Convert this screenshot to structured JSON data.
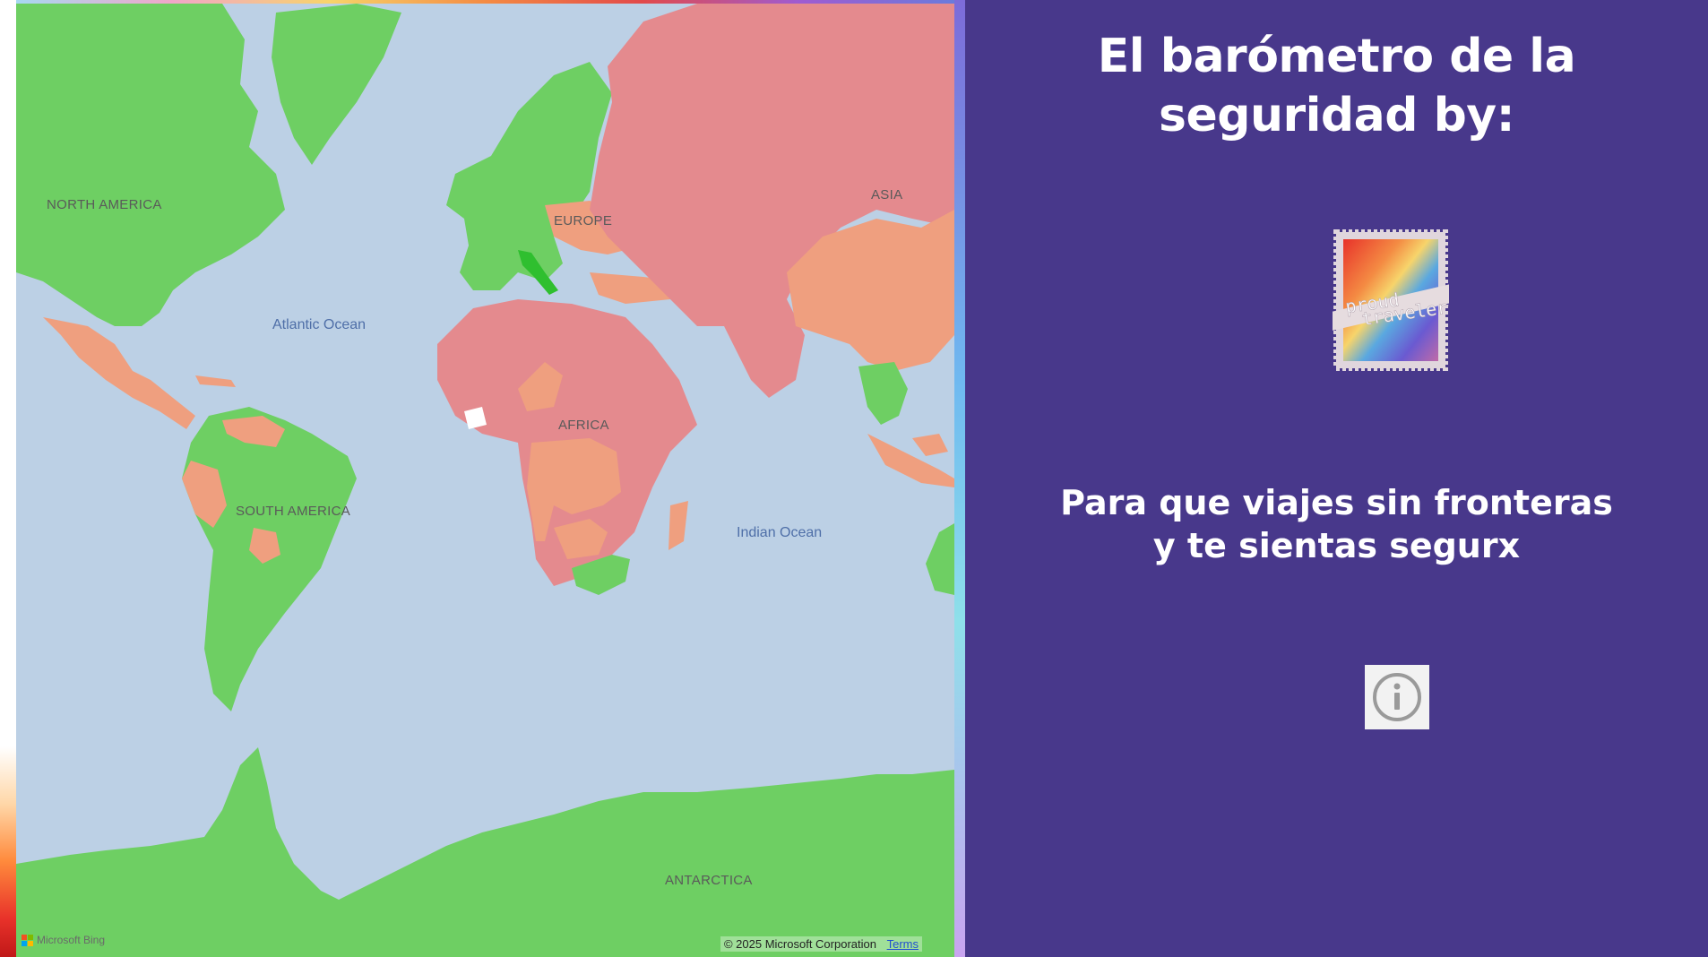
{
  "map": {
    "continent_labels": {
      "north_america": "NORTH AMERICA",
      "south_america": "SOUTH AMERICA",
      "europe": "EUROPE",
      "asia": "ASIA",
      "africa": "AFRICA",
      "antarctica": "ANTARCTICA"
    },
    "ocean_labels": {
      "atlantic": "Atlantic Ocean",
      "indian": "Indian Ocean"
    },
    "attribution": {
      "provider": "Microsoft Bing",
      "copyright": "© 2025 Microsoft Corporation",
      "terms_link": "Terms"
    },
    "colors": {
      "ocean": "#bcd0e5",
      "safe": "#6ecf63",
      "caution": "#ef9f7f",
      "danger": "#e48a8e",
      "highlight": "#2fbf2f"
    }
  },
  "panel": {
    "background": "#48388b",
    "title_line1": "El barómetro de la",
    "title_line2": "seguridad by:",
    "logo": {
      "line1": "proud",
      "line2": "travelers",
      "icon": "stamp-logo"
    },
    "tagline_line1": "Para que viajes sin fronteras",
    "tagline_line2": "y te sientas segurx",
    "info_icon": "info-icon"
  }
}
